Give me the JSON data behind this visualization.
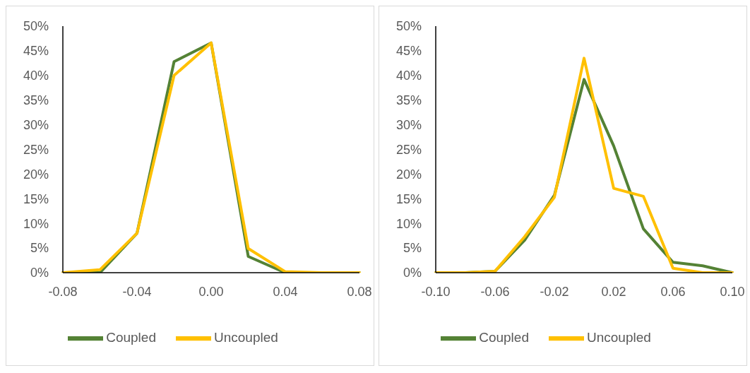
{
  "chart_data": [
    {
      "type": "line",
      "categories": [
        "-0.08",
        null,
        "-0.04",
        null,
        "0.00",
        null,
        "0.04",
        null,
        "0.08"
      ],
      "series": [
        {
          "name": "Coupled",
          "color": "#548235",
          "values": [
            0,
            0,
            8.0,
            42.8,
            46.6,
            3.3,
            0,
            0,
            0
          ]
        },
        {
          "name": "Uncoupled",
          "color": "#ffc000",
          "values": [
            0,
            0.6,
            8.0,
            40.0,
            46.6,
            4.9,
            0.2,
            0,
            0
          ]
        }
      ],
      "ylim": [
        0,
        50
      ],
      "yticks": [
        {
          "value": 0,
          "label": "0%"
        },
        {
          "value": 5,
          "label": "5%"
        },
        {
          "value": 10,
          "label": "10%"
        },
        {
          "value": 15,
          "label": "15%"
        },
        {
          "value": 20,
          "label": "20%"
        },
        {
          "value": 25,
          "label": "25%"
        },
        {
          "value": 30,
          "label": "30%"
        },
        {
          "value": 35,
          "label": "35%"
        },
        {
          "value": 40,
          "label": "40%"
        },
        {
          "value": 45,
          "label": "45%"
        },
        {
          "value": 50,
          "label": "50%"
        }
      ],
      "grid": false,
      "legend": "bottom",
      "marker": "none",
      "line_style": "solid"
    },
    {
      "type": "line",
      "categories": [
        "-0.10",
        null,
        "-0.06",
        null,
        "-0.02",
        null,
        "0.02",
        null,
        "0.06",
        null,
        "0.10"
      ],
      "series": [
        {
          "name": "Coupled",
          "color": "#548235",
          "values": [
            0,
            0,
            0.3,
            6.6,
            15.7,
            39.2,
            25.7,
            8.9,
            2.1,
            1.4,
            0
          ]
        },
        {
          "name": "Uncoupled",
          "color": "#ffc000",
          "values": [
            0,
            0,
            0.3,
            7.3,
            15.3,
            43.5,
            17.1,
            15.5,
            0.9,
            0,
            0
          ]
        }
      ],
      "ylim": [
        0,
        50
      ],
      "yticks": [
        {
          "value": 0,
          "label": "0%"
        },
        {
          "value": 5,
          "label": "5%"
        },
        {
          "value": 10,
          "label": "10%"
        },
        {
          "value": 15,
          "label": "15%"
        },
        {
          "value": 20,
          "label": "20%"
        },
        {
          "value": 25,
          "label": "25%"
        },
        {
          "value": 30,
          "label": "30%"
        },
        {
          "value": 35,
          "label": "35%"
        },
        {
          "value": 40,
          "label": "40%"
        },
        {
          "value": 45,
          "label": "45%"
        },
        {
          "value": 50,
          "label": "50%"
        }
      ],
      "grid": false,
      "legend": "bottom",
      "marker": "none",
      "line_style": "solid"
    }
  ]
}
